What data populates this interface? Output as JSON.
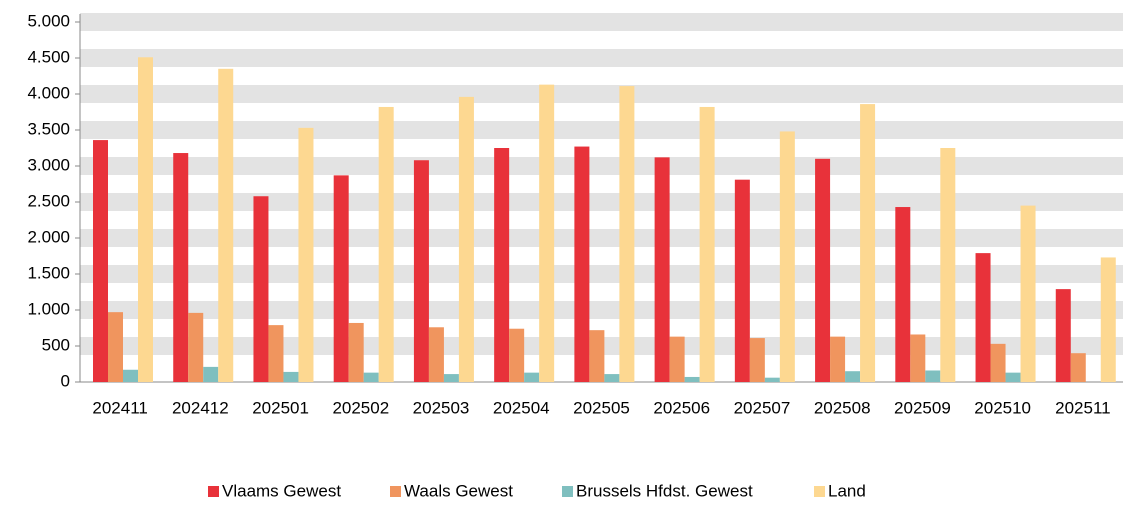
{
  "chart_data": {
    "type": "bar",
    "categories": [
      "202411",
      "202412",
      "202501",
      "202502",
      "202503",
      "202504",
      "202505",
      "202506",
      "202507",
      "202508",
      "202509",
      "202510",
      "202511"
    ],
    "series": [
      {
        "name": "Vlaams Gewest",
        "color": "#e8323a",
        "values": [
          3360,
          3180,
          2580,
          2870,
          3080,
          3250,
          3270,
          3120,
          2810,
          3100,
          2430,
          1790,
          1290
        ]
      },
      {
        "name": "Waals Gewest",
        "color": "#f0955e",
        "values": [
          970,
          960,
          790,
          820,
          760,
          740,
          720,
          630,
          610,
          630,
          660,
          530,
          400
        ]
      },
      {
        "name": "Brussels Hfdst. Gewest",
        "color": "#7fbfbf",
        "values": [
          170,
          210,
          140,
          130,
          110,
          130,
          110,
          70,
          60,
          150,
          160,
          130,
          0
        ]
      },
      {
        "name": "Land",
        "color": "#fdd891",
        "values": [
          4510,
          4350,
          3530,
          3820,
          3960,
          4130,
          4110,
          3820,
          3480,
          3860,
          3250,
          2450,
          1730
        ]
      }
    ],
    "ylim": [
      0,
      5000
    ],
    "yticks": [
      0,
      500,
      {
        "value": 1000,
        "label": "1.000"
      },
      {
        "value": 1500,
        "label": "1.500"
      },
      {
        "value": 2000,
        "label": "2.000"
      },
      {
        "value": 2500,
        "label": "2.500"
      },
      {
        "value": 3000,
        "label": "3.000"
      },
      {
        "value": 3500,
        "label": "3.500"
      },
      {
        "value": 4000,
        "label": "4.000"
      },
      {
        "value": 4500,
        "label": "4.500"
      },
      {
        "value": 5000,
        "label": "5.000"
      }
    ],
    "grid": true,
    "legend": "bottom"
  }
}
